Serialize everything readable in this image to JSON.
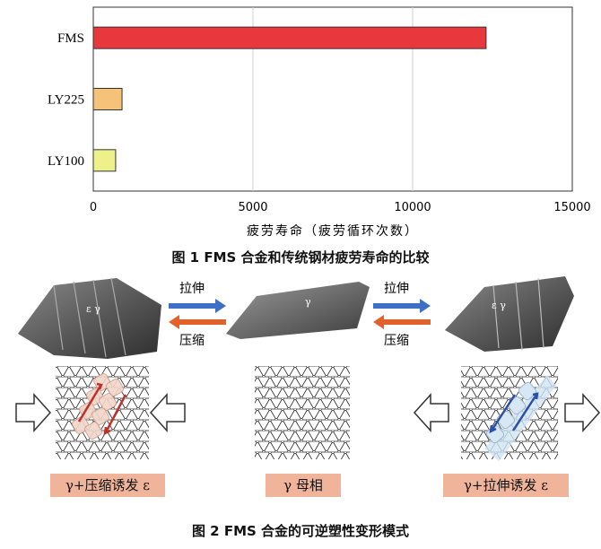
{
  "figure1": {
    "caption": "图 1   FMS 合金和传统钢材疲劳寿命的比较",
    "chart_data": {
      "type": "bar",
      "orientation": "horizontal",
      "categories": [
        "FMS",
        "LY225",
        "LY100"
      ],
      "values": [
        12300,
        900,
        700
      ],
      "colors": [
        "#e8383d",
        "#f5c27a",
        "#eef08a"
      ],
      "xlabel": "疲劳寿命（疲劳循环次数）",
      "ylabel": "",
      "xlim": [
        0,
        15000
      ],
      "xticks": [
        0,
        5000,
        10000,
        15000
      ],
      "grid": true
    }
  },
  "figure2": {
    "caption": "图 2   FMS 合金的可逆塑性变形模式",
    "top_arrow_label_1": "拉伸",
    "bottom_arrow_label_1": "压缩",
    "top_arrow_label_2": "拉伸",
    "bottom_arrow_label_2": "压缩",
    "arrow_colors": {
      "tension": "#3f6fc4",
      "compression": "#e0622a"
    },
    "surface_left_label": "ε γ",
    "surface_mid_label": "γ",
    "surface_right_label": "ε γ",
    "state_left": "γ+压缩诱发 ε",
    "state_mid": "γ 母相",
    "state_right": "γ+拉伸诱发 ε"
  }
}
